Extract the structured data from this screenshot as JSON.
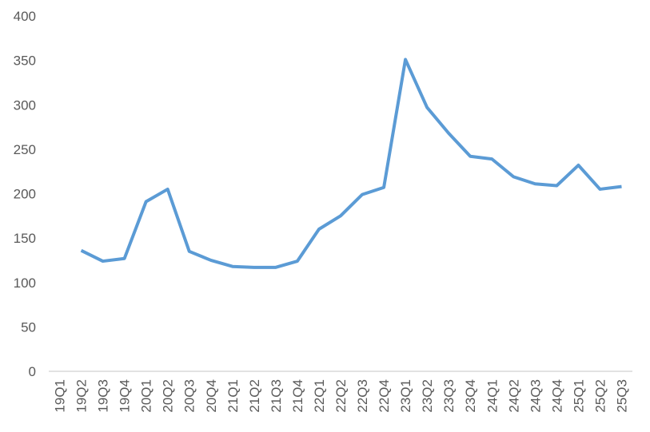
{
  "chart_data": {
    "type": "line",
    "categories": [
      "19Q1",
      "19Q2",
      "19Q3",
      "19Q4",
      "20Q1",
      "20Q2",
      "20Q3",
      "20Q4",
      "21Q1",
      "21Q2",
      "21Q3",
      "21Q4",
      "22Q1",
      "22Q2",
      "22Q3",
      "22Q4",
      "23Q1",
      "23Q2",
      "23Q3",
      "23Q4",
      "24Q1",
      "24Q2",
      "24Q3",
      "24Q4",
      "25Q1",
      "25Q2",
      "25Q3"
    ],
    "values": [
      null,
      136,
      124,
      127,
      191,
      205,
      135,
      125,
      118,
      117,
      117,
      124,
      160,
      175,
      199,
      207,
      351,
      297,
      268,
      242,
      239,
      219,
      211,
      209,
      232,
      205,
      208
    ],
    "color": "#5b9bd5",
    "ylim": [
      0,
      400
    ],
    "yticks": [
      0,
      50,
      100,
      150,
      200,
      250,
      300,
      350,
      400
    ],
    "grid": false
  }
}
